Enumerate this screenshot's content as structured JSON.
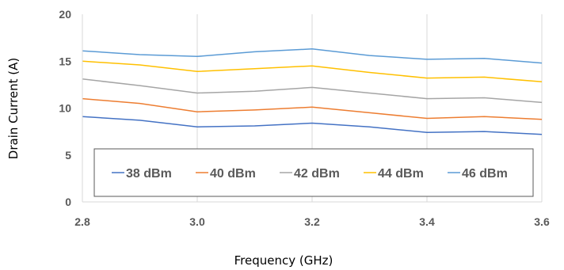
{
  "chart_data": {
    "type": "line",
    "title": "",
    "xlabel": "Frequency (GHz)",
    "ylabel": "Drain Current (A)",
    "xlim": [
      2.8,
      3.6
    ],
    "ylim": [
      0,
      20
    ],
    "x_ticks": [
      "2.8",
      "3.0",
      "3.2",
      "3.4",
      "3.6"
    ],
    "y_ticks": [
      "0",
      "5",
      "10",
      "15",
      "20"
    ],
    "x": [
      2.8,
      2.9,
      3.0,
      3.1,
      3.2,
      3.3,
      3.4,
      3.5,
      3.6
    ],
    "grid": "vertical",
    "legend_position": "bottom-inside",
    "series": [
      {
        "name": "38 dBm",
        "color": "#4472c4",
        "values": [
          9.1,
          8.7,
          8.0,
          8.1,
          8.4,
          8.0,
          7.4,
          7.5,
          7.2
        ]
      },
      {
        "name": "40 dBm",
        "color": "#ed7d31",
        "values": [
          11.0,
          10.5,
          9.6,
          9.8,
          10.1,
          9.5,
          8.9,
          9.1,
          8.8
        ]
      },
      {
        "name": "42 dBm",
        "color": "#a5a5a5",
        "values": [
          13.1,
          12.4,
          11.6,
          11.8,
          12.2,
          11.6,
          11.0,
          11.1,
          10.6
        ]
      },
      {
        "name": "44 dBm",
        "color": "#ffc000",
        "values": [
          15.0,
          14.6,
          13.9,
          14.2,
          14.5,
          13.8,
          13.2,
          13.3,
          12.8
        ]
      },
      {
        "name": "46 dBm",
        "color": "#5b9bd5",
        "values": [
          16.1,
          15.7,
          15.5,
          16.0,
          16.3,
          15.6,
          15.2,
          15.3,
          14.8
        ]
      }
    ]
  }
}
